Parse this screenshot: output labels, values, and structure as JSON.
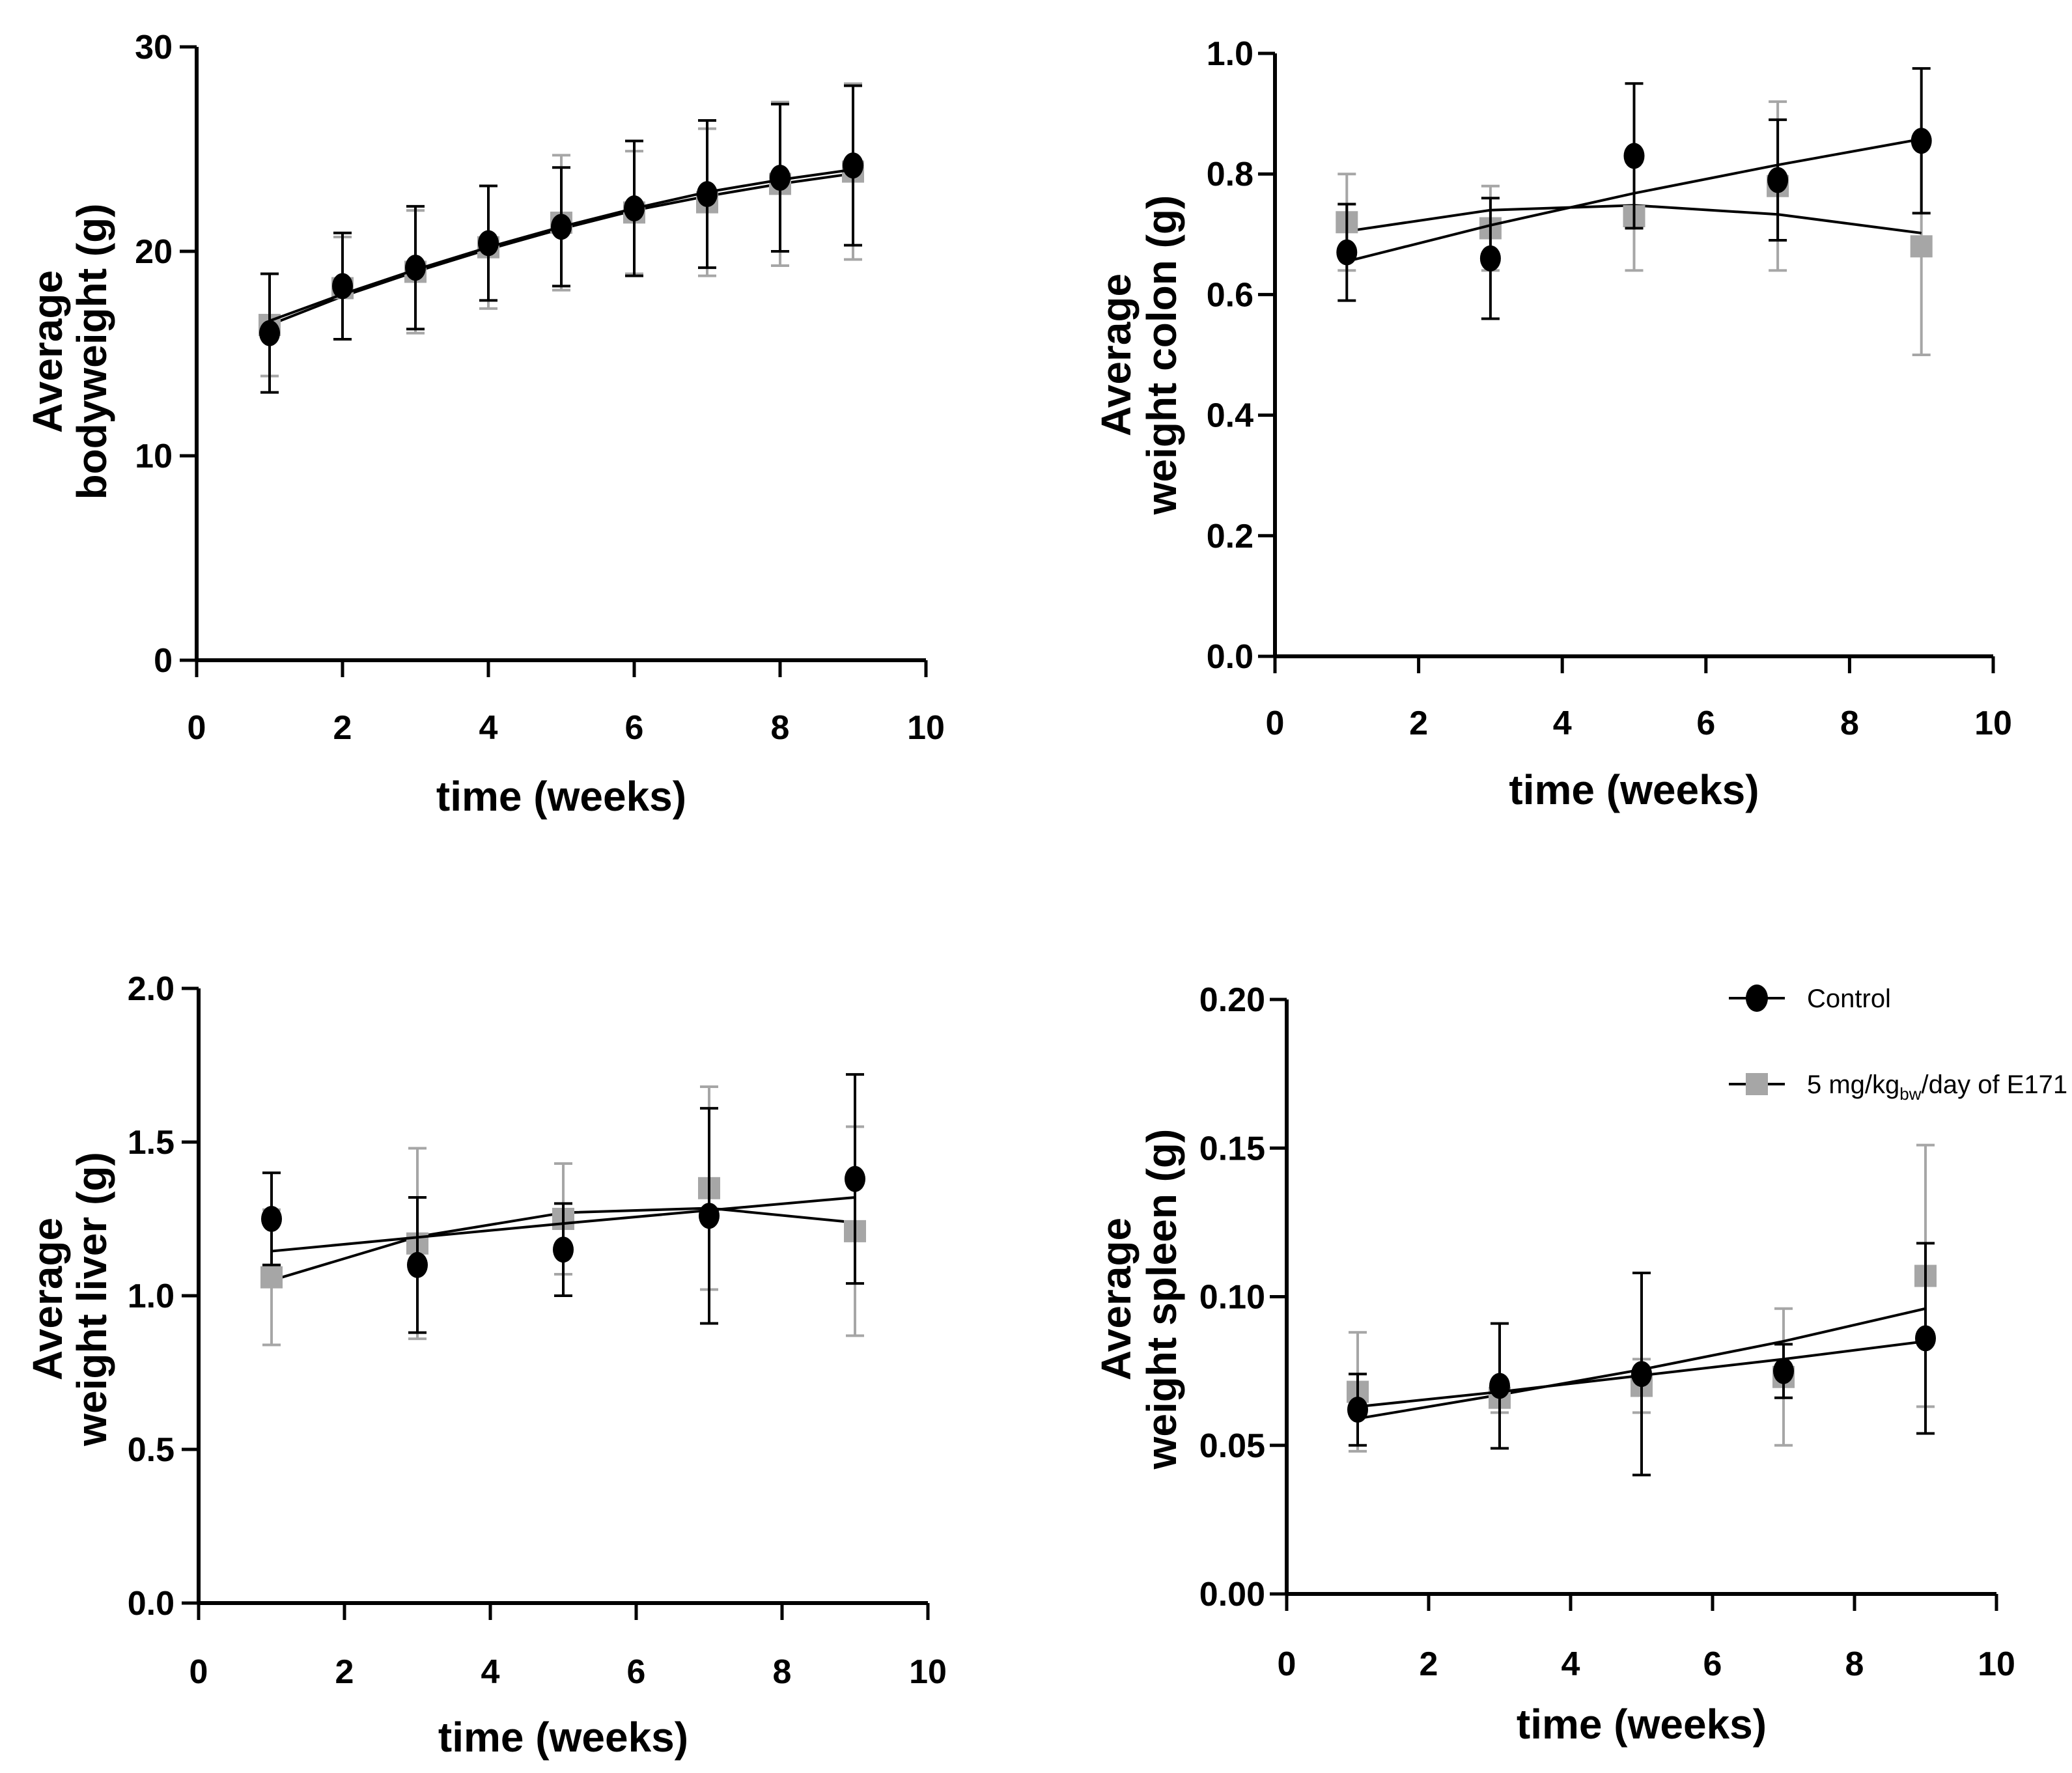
{
  "legend": {
    "control": "Control",
    "treated_prefix": "5 mg/kg",
    "treated_sub": "bw",
    "treated_suffix": "/day of E171"
  },
  "colors": {
    "control": "#000000",
    "treated": "#a6a6a6"
  },
  "chart_data": [
    {
      "id": "bodyweight",
      "type": "line",
      "xlabel": "time (weeks)",
      "ylabel_lines": [
        "Average",
        "bodyweight (g)"
      ],
      "xlim": [
        0,
        10
      ],
      "ylim": [
        0,
        30
      ],
      "xticks": [
        0,
        2,
        4,
        6,
        8,
        10
      ],
      "yticks": [
        0,
        10,
        20,
        30
      ],
      "ytick_labels": [
        "0",
        "10",
        "20",
        "30"
      ],
      "series": [
        {
          "name": "Control",
          "marker": "circle",
          "x": [
            1,
            2,
            3,
            4,
            5,
            6,
            7,
            8,
            9
          ],
          "y": [
            16.0,
            18.3,
            19.2,
            20.4,
            21.2,
            22.1,
            22.8,
            23.6,
            24.2
          ],
          "err": [
            2.9,
            2.6,
            3.0,
            2.8,
            2.9,
            3.3,
            3.6,
            3.6,
            3.9
          ],
          "fit": [
            16.6,
            17.9,
            19.1,
            20.2,
            21.2,
            22.1,
            22.9,
            23.5,
            24.0
          ]
        },
        {
          "name": "5 mg/kgbw/day of E171",
          "marker": "square",
          "x": [
            1,
            2,
            3,
            4,
            5,
            6,
            7,
            8,
            9
          ],
          "y": [
            16.4,
            18.2,
            19.0,
            20.2,
            21.4,
            21.9,
            22.4,
            23.3,
            23.9
          ],
          "err": [
            2.5,
            2.5,
            3.0,
            3.0,
            3.3,
            3.0,
            3.6,
            4.0,
            4.3
          ],
          "fit": [
            16.4,
            17.8,
            19.0,
            20.1,
            21.1,
            22.0,
            22.7,
            23.3,
            23.8
          ]
        }
      ]
    },
    {
      "id": "colon",
      "type": "line",
      "xlabel": "time (weeks)",
      "ylabel_lines": [
        "Average",
        "weight colon (g)"
      ],
      "xlim": [
        0,
        10
      ],
      "ylim": [
        0,
        1.0
      ],
      "xticks": [
        0,
        2,
        4,
        6,
        8,
        10
      ],
      "yticks": [
        0,
        0.2,
        0.4,
        0.6,
        0.8,
        1.0
      ],
      "ytick_labels": [
        "0.0",
        "0.2",
        "0.4",
        "0.6",
        "0.8",
        "1.0"
      ],
      "series": [
        {
          "name": "Control",
          "marker": "circle",
          "x": [
            1,
            3,
            5,
            7,
            9
          ],
          "y": [
            0.67,
            0.66,
            0.83,
            0.79,
            0.855
          ],
          "err": [
            0.08,
            0.1,
            0.12,
            0.1,
            0.12
          ],
          "fit": [
            0.655,
            0.715,
            0.768,
            0.815,
            0.858
          ]
        },
        {
          "name": "5 mg/kgbw/day of E171",
          "marker": "square",
          "x": [
            1,
            3,
            5,
            7,
            9
          ],
          "y": [
            0.72,
            0.71,
            0.73,
            0.78,
            0.68
          ],
          "err": [
            0.08,
            0.07,
            0.09,
            0.14,
            0.18
          ],
          "fit": [
            0.705,
            0.74,
            0.748,
            0.733,
            0.702
          ]
        }
      ]
    },
    {
      "id": "liver",
      "type": "line",
      "xlabel": "time (weeks)",
      "ylabel_lines": [
        "Average",
        "weight liver (g)"
      ],
      "xlim": [
        0,
        10
      ],
      "ylim": [
        0,
        2.0
      ],
      "xticks": [
        0,
        2,
        4,
        6,
        8,
        10
      ],
      "yticks": [
        0,
        0.5,
        1.0,
        1.5,
        2.0
      ],
      "ytick_labels": [
        "0.0",
        "0.5",
        "1.0",
        "1.5",
        "2.0"
      ],
      "series": [
        {
          "name": "Control",
          "marker": "circle",
          "x": [
            1,
            3,
            5,
            7,
            9
          ],
          "y": [
            1.25,
            1.1,
            1.15,
            1.26,
            1.38
          ],
          "err": [
            0.15,
            0.22,
            0.15,
            0.35,
            0.34
          ],
          "fit": [
            1.145,
            1.19,
            1.235,
            1.278,
            1.32
          ]
        },
        {
          "name": "5 mg/kgbw/day of E171",
          "marker": "square",
          "x": [
            1,
            3,
            5,
            7,
            9
          ],
          "y": [
            1.06,
            1.17,
            1.25,
            1.35,
            1.21
          ],
          "err": [
            0.22,
            0.31,
            0.18,
            0.33,
            0.34
          ],
          "fit": [
            1.05,
            1.192,
            1.27,
            1.285,
            1.238
          ]
        }
      ]
    },
    {
      "id": "spleen",
      "type": "line",
      "xlabel": "time (weeks)",
      "ylabel_lines": [
        "Average",
        "weight spleen (g)"
      ],
      "xlim": [
        0,
        10
      ],
      "ylim": [
        0,
        0.2
      ],
      "xticks": [
        0,
        2,
        4,
        6,
        8,
        10
      ],
      "yticks": [
        0,
        0.05,
        0.1,
        0.15,
        0.2
      ],
      "ytick_labels": [
        "0.00",
        "0.05",
        "0.10",
        "0.15",
        "0.20"
      ],
      "series": [
        {
          "name": "Control",
          "marker": "circle",
          "x": [
            1,
            3,
            5,
            7,
            9
          ],
          "y": [
            0.062,
            0.07,
            0.074,
            0.075,
            0.086
          ],
          "err": [
            0.012,
            0.021,
            0.034,
            0.009,
            0.032
          ],
          "fit": [
            0.063,
            0.068,
            0.0735,
            0.079,
            0.085
          ]
        },
        {
          "name": "5 mg/kgbw/day of E171",
          "marker": "square",
          "x": [
            1,
            3,
            5,
            7,
            9
          ],
          "y": [
            0.068,
            0.066,
            0.07,
            0.073,
            0.107
          ],
          "err": [
            0.02,
            0.005,
            0.009,
            0.023,
            0.044
          ],
          "fit": [
            0.059,
            0.067,
            0.0755,
            0.085,
            0.096
          ]
        }
      ]
    }
  ]
}
